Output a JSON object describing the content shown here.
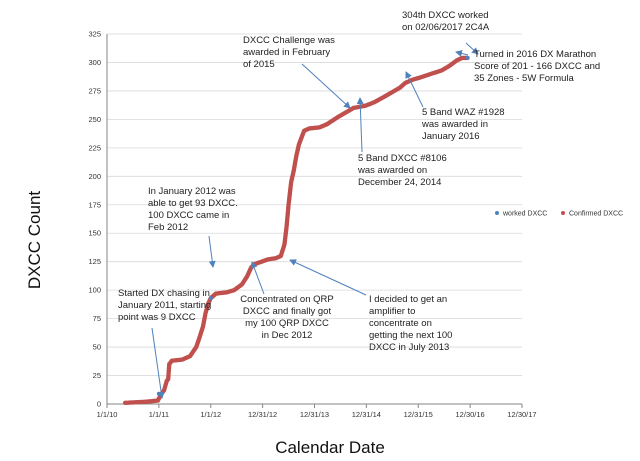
{
  "chart_data": {
    "type": "scatter",
    "title": "",
    "xlabel": "Calendar Date",
    "ylabel": "DXCC Count",
    "ylim": [
      0,
      325
    ],
    "y_ticks": [
      0,
      25,
      50,
      75,
      100,
      125,
      150,
      175,
      200,
      225,
      250,
      275,
      300,
      325
    ],
    "x_range_years": [
      2010.0,
      2018.0
    ],
    "x_tick_labels": [
      "1/1/10",
      "1/1/11",
      "1/1/12",
      "12/31/12",
      "12/31/13",
      "12/31/14",
      "12/31/15",
      "12/30/16",
      "12/30/17"
    ],
    "grid": "horizontal",
    "legend": [
      "worked DXCC",
      "Confirmed DXCC"
    ],
    "legend_placement": "right",
    "colors": {
      "worked": "#4f81bd",
      "confirmed": "#c0504d",
      "arrow": "#4f81bd"
    },
    "series": [
      {
        "name": "worked DXCC",
        "note": "decimal year, count",
        "points": [
          [
            2011.0,
            9
          ],
          [
            2012.0,
            93
          ],
          [
            2016.95,
            304
          ]
        ]
      },
      {
        "name": "Confirmed DXCC",
        "note": "decimal year, count",
        "points": [
          [
            2010.35,
            1
          ],
          [
            2010.75,
            2
          ],
          [
            2010.98,
            3
          ],
          [
            2011.05,
            9
          ],
          [
            2011.1,
            12
          ],
          [
            2011.15,
            20
          ],
          [
            2011.18,
            22
          ],
          [
            2011.2,
            35
          ],
          [
            2011.25,
            38
          ],
          [
            2011.45,
            39
          ],
          [
            2011.6,
            42
          ],
          [
            2011.72,
            50
          ],
          [
            2011.78,
            58
          ],
          [
            2011.85,
            68
          ],
          [
            2011.9,
            80
          ],
          [
            2011.95,
            88
          ],
          [
            2012.0,
            93
          ],
          [
            2012.05,
            95
          ],
          [
            2012.1,
            97
          ],
          [
            2012.3,
            98
          ],
          [
            2012.45,
            100
          ],
          [
            2012.6,
            105
          ],
          [
            2012.7,
            112
          ],
          [
            2012.78,
            120
          ],
          [
            2012.85,
            123
          ],
          [
            2012.98,
            125
          ],
          [
            2013.1,
            127
          ],
          [
            2013.25,
            128
          ],
          [
            2013.35,
            130
          ],
          [
            2013.42,
            140
          ],
          [
            2013.46,
            155
          ],
          [
            2013.5,
            175
          ],
          [
            2013.55,
            195
          ],
          [
            2013.6,
            205
          ],
          [
            2013.65,
            218
          ],
          [
            2013.7,
            228
          ],
          [
            2013.75,
            234
          ],
          [
            2013.8,
            240
          ],
          [
            2013.9,
            242
          ],
          [
            2014.1,
            243
          ],
          [
            2014.25,
            246
          ],
          [
            2014.45,
            252
          ],
          [
            2014.6,
            256
          ],
          [
            2014.75,
            260
          ],
          [
            2014.98,
            262
          ],
          [
            2015.15,
            265
          ],
          [
            2015.35,
            270
          ],
          [
            2015.5,
            274
          ],
          [
            2015.65,
            278
          ],
          [
            2015.75,
            282
          ],
          [
            2015.9,
            285
          ],
          [
            2016.05,
            287
          ],
          [
            2016.25,
            290
          ],
          [
            2016.45,
            293
          ],
          [
            2016.6,
            297
          ],
          [
            2016.75,
            302
          ],
          [
            2016.85,
            304
          ],
          [
            2016.95,
            304
          ]
        ]
      }
    ],
    "annotations": [
      {
        "lines": [
          "304th DXCC worked",
          "on 02/06/2017 2C4A"
        ]
      },
      {
        "lines": [
          "DXCC Challenge was",
          "awarded in February",
          "of 2015"
        ]
      },
      {
        "lines": [
          "Turned in 2016  DX Marathon",
          "Score of 201 - 166 DXCC and",
          "35 Zones - 5W Formula"
        ]
      },
      {
        "lines": [
          "5 Band WAZ #1928",
          "was awarded in",
          "January 2016"
        ]
      },
      {
        "lines": [
          "5 Band DXCC #8106",
          "was awarded on",
          "December 24, 2014"
        ]
      },
      {
        "lines": [
          "In January 2012 was",
          "able to get 93 DXCC.",
          "100 DXCC came in",
          "Feb 2012"
        ]
      },
      {
        "lines": [
          "Started DX chasing in",
          "January 2011, starting",
          "point was 9 DXCC"
        ]
      },
      {
        "lines": [
          "Concentrated on QRP",
          "DXCC and finally got",
          "my 100 QRP DXCC",
          "in Dec 2012"
        ]
      },
      {
        "lines": [
          "I decided to get an",
          "amplifier to",
          "concentrate on",
          "getting the next 100",
          "DXCC in July 2013"
        ]
      }
    ]
  }
}
